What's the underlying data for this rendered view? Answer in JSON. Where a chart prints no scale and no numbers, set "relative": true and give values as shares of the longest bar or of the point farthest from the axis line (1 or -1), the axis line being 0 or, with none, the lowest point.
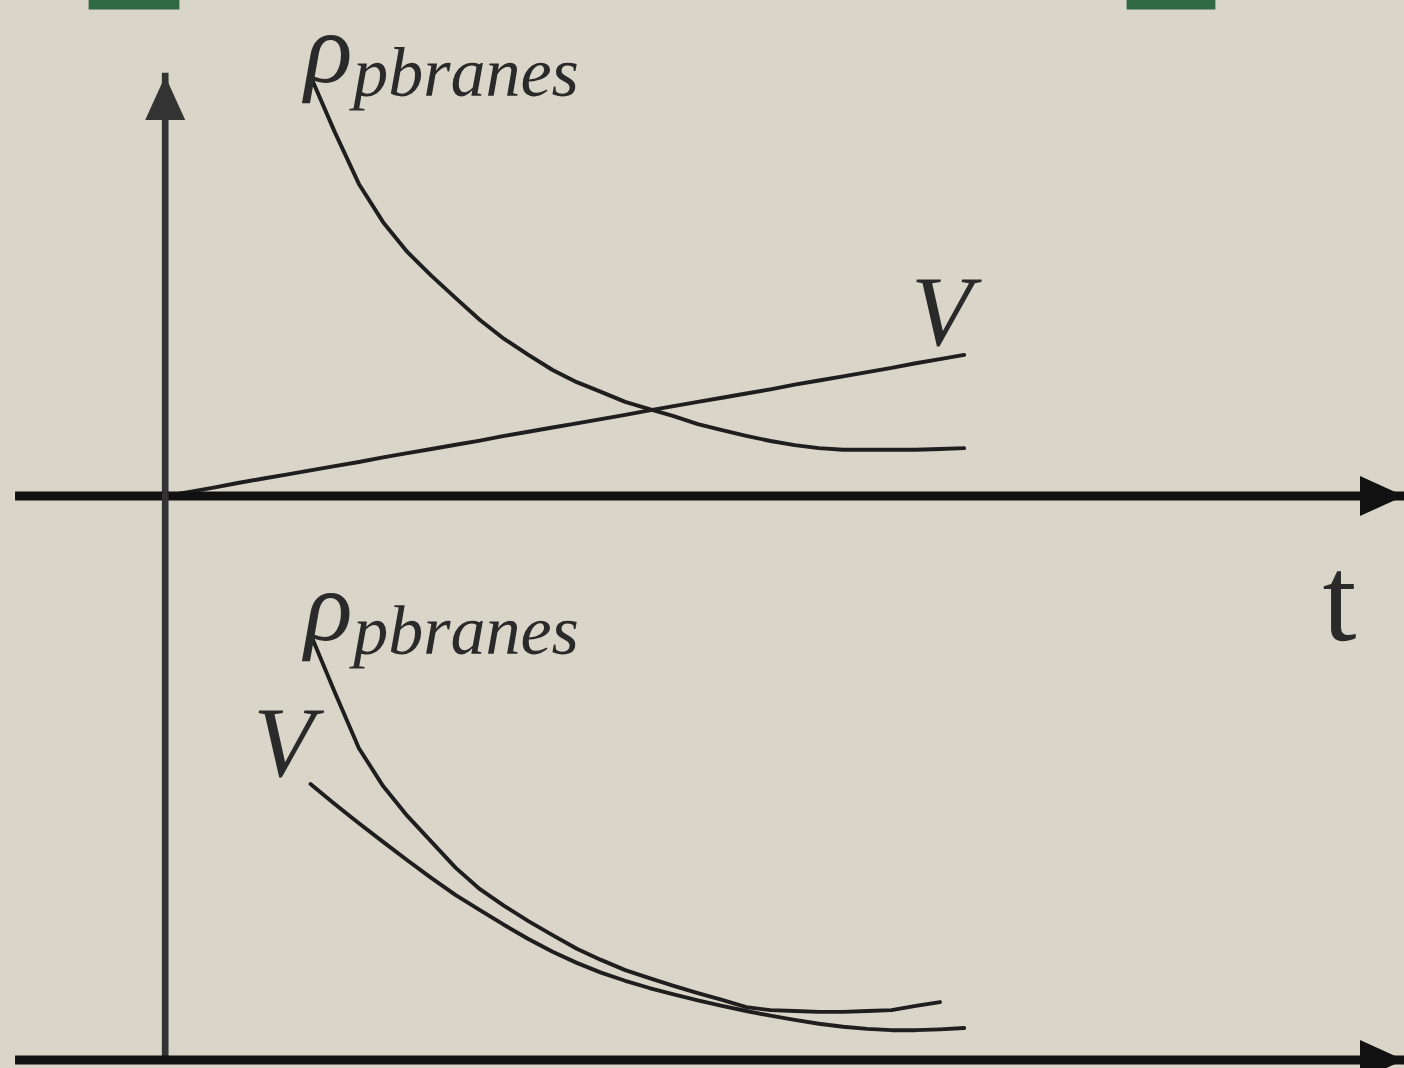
{
  "chart_data": [
    {
      "type": "line",
      "relative": true,
      "tick_labels": false,
      "xlabel": "t",
      "categories": [
        null,
        null,
        null,
        null,
        null,
        null,
        null,
        null,
        null,
        null,
        null,
        null,
        null,
        null,
        null,
        null,
        null,
        null,
        null,
        null,
        null,
        null,
        null,
        null,
        null,
        null,
        null,
        null,
        null,
        null,
        null,
        null,
        null,
        null,
        null,
        null,
        null,
        null,
        null,
        null,
        null,
        null,
        null,
        null,
        null,
        null,
        null,
        null,
        null,
        null,
        null,
        null
      ],
      "series": [
        {
          "name": "ρ$_{pbranes}$",
          "color": "#1e1e1e",
          "values": [
            null,
            null,
            null,
            null,
            null,
            null,
            1.0,
            0.867,
            0.743,
            0.652,
            0.581,
            0.524,
            0.471,
            0.419,
            0.374,
            0.336,
            0.3,
            0.271,
            0.248,
            0.224,
            0.207,
            0.19,
            0.171,
            0.157,
            0.143,
            0.131,
            0.121,
            0.114,
            0.11,
            0.11,
            0.11,
            0.11,
            0.112,
            0.114,
            null,
            null,
            null,
            null,
            null,
            null,
            null,
            null,
            null,
            null,
            null,
            null,
            null,
            null,
            null,
            null,
            null,
            null
          ]
        },
        {
          "name": "V",
          "color": "#1e1e1e",
          "values": [
            0,
            0.01,
            0.02,
            0.031,
            0.041,
            0.051,
            0.061,
            0.071,
            0.081,
            0.092,
            0.102,
            0.112,
            0.122,
            0.132,
            0.143,
            0.153,
            0.163,
            0.173,
            0.183,
            0.193,
            0.204,
            0.214,
            0.224,
            0.234,
            0.244,
            0.254,
            0.265,
            0.275,
            0.285,
            0.295,
            0.305,
            0.316,
            0.326,
            0.336,
            null,
            null,
            null,
            null,
            null,
            null,
            null,
            null,
            null,
            null,
            null,
            null,
            null,
            null,
            null,
            null,
            null,
            null
          ]
        }
      ]
    },
    {
      "type": "line",
      "relative": true,
      "tick_labels": false,
      "categories": [
        null,
        null,
        null,
        null,
        null,
        null,
        null,
        null,
        null,
        null,
        null,
        null,
        null,
        null,
        null,
        null,
        null,
        null,
        null,
        null,
        null,
        null,
        null,
        null,
        null,
        null,
        null,
        null,
        null,
        null,
        null,
        null,
        null,
        null,
        null,
        null,
        null,
        null,
        null,
        null,
        null,
        null,
        null,
        null,
        null,
        null,
        null,
        null,
        null,
        null,
        null,
        null
      ],
      "series": [
        {
          "name": "ρ$_{pbranes}$",
          "color": "#1e1e1e",
          "values": [
            null,
            null,
            null,
            null,
            null,
            null,
            1.0,
            0.864,
            0.732,
            0.643,
            0.573,
            0.512,
            0.451,
            0.401,
            0.362,
            0.326,
            0.293,
            0.261,
            0.235,
            0.211,
            0.192,
            0.174,
            0.157,
            0.141,
            0.124,
            0.117,
            0.115,
            0.113,
            0.113,
            0.115,
            0.117,
            0.127,
            0.136,
            null,
            null,
            null,
            null,
            null,
            null,
            null,
            null,
            null,
            null,
            null,
            null,
            null,
            null,
            null,
            null,
            null,
            null,
            null
          ]
        },
        {
          "name": "V",
          "color": "#1e1e1e",
          "values": [
            null,
            null,
            null,
            null,
            null,
            null,
            0.648,
            0.601,
            0.556,
            0.512,
            0.469,
            0.427,
            0.387,
            0.352,
            0.317,
            0.284,
            0.254,
            0.228,
            0.205,
            0.186,
            0.169,
            0.154,
            0.14,
            0.127,
            0.115,
            0.104,
            0.094,
            0.085,
            0.078,
            0.073,
            0.07,
            0.07,
            0.072,
            0.075,
            null,
            null,
            null,
            null,
            null,
            null,
            null,
            null,
            null,
            null,
            null,
            null,
            null,
            null,
            null,
            null,
            null,
            null
          ]
        }
      ]
    }
  ]
}
